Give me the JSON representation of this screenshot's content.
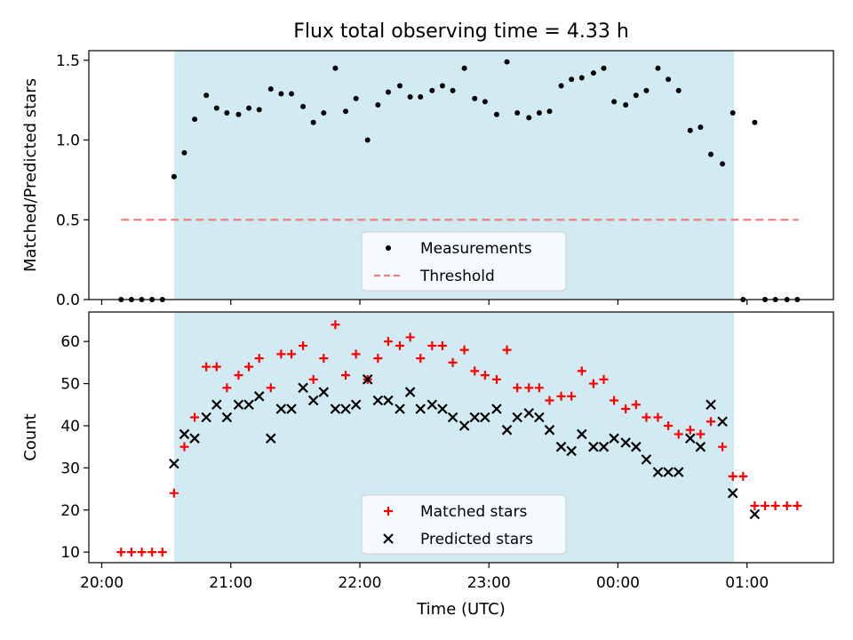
{
  "chart_data": {
    "title": "Flux total observing time = 4.33 h",
    "xlabel": "Time (UTC)",
    "x_tick_labels": [
      "20:00",
      "21:00",
      "22:00",
      "23:00",
      "00:00",
      "01:00"
    ],
    "x_ticks_hours": [
      0,
      1,
      2,
      3,
      4,
      5
    ],
    "xlim_hours": [
      -0.1,
      5.67
    ],
    "shaded_span_hours": [
      0.56,
      4.9
    ],
    "colors": {
      "shade": "#add8e6",
      "measurements": "#000000",
      "threshold": "#f08080",
      "matched": "#ff0000",
      "predicted": "#000000"
    },
    "panels": [
      {
        "type": "scatter",
        "ylabel": "Matched/Predicted stars",
        "ylim": [
          0,
          1.56
        ],
        "y_ticks": [
          0.0,
          0.5,
          1.0,
          1.5
        ],
        "y_tick_labels": [
          "0.0",
          "0.5",
          "1.0",
          "1.5"
        ],
        "legend": {
          "position": "lower-center",
          "entries": [
            {
              "label": "Measurements",
              "marker": "dot"
            },
            {
              "label": "Threshold",
              "marker": "dashed-line"
            }
          ]
        },
        "threshold": {
          "y": 0.5,
          "x_range_hours": [
            0.15,
            5.4
          ]
        },
        "series": [
          {
            "name": "Measurements",
            "marker": "dot",
            "x_hours": [
              0.15,
              0.23,
              0.31,
              0.39,
              0.47,
              0.56,
              0.64,
              0.72,
              0.81,
              0.89,
              0.97,
              1.06,
              1.14,
              1.22,
              1.31,
              1.39,
              1.47,
              1.56,
              1.64,
              1.72,
              1.81,
              1.89,
              1.97,
              2.06,
              2.14,
              2.22,
              2.31,
              2.39,
              2.47,
              2.56,
              2.64,
              2.72,
              2.81,
              2.89,
              2.97,
              3.06,
              3.14,
              3.22,
              3.31,
              3.39,
              3.47,
              3.56,
              3.64,
              3.72,
              3.81,
              3.89,
              3.97,
              4.06,
              4.14,
              4.22,
              4.31,
              4.39,
              4.47,
              4.56,
              4.64,
              4.72,
              4.81,
              4.89,
              4.97,
              5.06,
              5.14,
              5.22,
              5.31,
              5.39
            ],
            "values": [
              0,
              0,
              0,
              0,
              0,
              0.77,
              0.92,
              1.13,
              1.28,
              1.2,
              1.17,
              1.16,
              1.2,
              1.19,
              1.32,
              1.29,
              1.29,
              1.21,
              1.11,
              1.17,
              1.45,
              1.18,
              1.26,
              1.0,
              1.22,
              1.3,
              1.34,
              1.27,
              1.27,
              1.31,
              1.34,
              1.31,
              1.45,
              1.26,
              1.24,
              1.16,
              1.49,
              1.17,
              1.14,
              1.17,
              1.18,
              1.34,
              1.38,
              1.39,
              1.42,
              1.45,
              1.24,
              1.22,
              1.28,
              1.31,
              1.45,
              1.38,
              1.31,
              1.06,
              1.08,
              0.91,
              0.85,
              1.17,
              0,
              1.11,
              0,
              0,
              0,
              0
            ]
          }
        ]
      },
      {
        "type": "scatter",
        "ylabel": "Count",
        "ylim": [
          7.5,
          67
        ],
        "y_ticks": [
          10,
          20,
          30,
          40,
          50,
          60
        ],
        "y_tick_labels": [
          "10",
          "20",
          "30",
          "40",
          "50",
          "60"
        ],
        "legend": {
          "position": "lower-center",
          "entries": [
            {
              "label": "Matched stars",
              "marker": "plus"
            },
            {
              "label": "Predicted stars",
              "marker": "cross"
            }
          ]
        },
        "series": [
          {
            "name": "Matched stars",
            "marker": "plus",
            "x_hours": [
              0.15,
              0.23,
              0.31,
              0.39,
              0.47,
              0.56,
              0.64,
              0.72,
              0.81,
              0.89,
              0.97,
              1.06,
              1.14,
              1.22,
              1.31,
              1.39,
              1.47,
              1.56,
              1.64,
              1.72,
              1.81,
              1.89,
              1.97,
              2.06,
              2.14,
              2.22,
              2.31,
              2.39,
              2.47,
              2.56,
              2.64,
              2.72,
              2.81,
              2.89,
              2.97,
              3.06,
              3.14,
              3.22,
              3.31,
              3.39,
              3.47,
              3.56,
              3.64,
              3.72,
              3.81,
              3.89,
              3.97,
              4.06,
              4.14,
              4.22,
              4.31,
              4.39,
              4.47,
              4.56,
              4.64,
              4.72,
              4.81,
              4.89,
              4.97,
              5.06,
              5.14,
              5.22,
              5.31,
              5.39
            ],
            "values": [
              10,
              10,
              10,
              10,
              10,
              24,
              35,
              42,
              54,
              54,
              49,
              52,
              54,
              56,
              49,
              57,
              57,
              59,
              51,
              56,
              64,
              52,
              57,
              51,
              56,
              60,
              59,
              61,
              56,
              59,
              59,
              55,
              58,
              53,
              52,
              51,
              58,
              49,
              49,
              49,
              46,
              47,
              47,
              53,
              50,
              51,
              46,
              44,
              45,
              42,
              42,
              40,
              38,
              39,
              38,
              41,
              35,
              28,
              28,
              21,
              21,
              21,
              21,
              21
            ]
          },
          {
            "name": "Predicted stars",
            "marker": "cross",
            "x_hours": [
              0.56,
              0.64,
              0.72,
              0.81,
              0.89,
              0.97,
              1.06,
              1.14,
              1.22,
              1.31,
              1.39,
              1.47,
              1.56,
              1.64,
              1.72,
              1.81,
              1.89,
              1.97,
              2.06,
              2.14,
              2.22,
              2.31,
              2.39,
              2.47,
              2.56,
              2.64,
              2.72,
              2.81,
              2.89,
              2.97,
              3.06,
              3.14,
              3.22,
              3.31,
              3.39,
              3.47,
              3.56,
              3.64,
              3.72,
              3.81,
              3.89,
              3.97,
              4.06,
              4.14,
              4.22,
              4.31,
              4.39,
              4.47,
              4.56,
              4.64,
              4.72,
              4.81,
              4.89,
              5.06
            ],
            "values": [
              31,
              38,
              37,
              42,
              45,
              42,
              45,
              45,
              47,
              37,
              44,
              44,
              49,
              46,
              48,
              44,
              44,
              45,
              51,
              46,
              46,
              44,
              48,
              44,
              45,
              44,
              42,
              40,
              42,
              42,
              44,
              39,
              42,
              43,
              42,
              39,
              35,
              34,
              38,
              35,
              35,
              37,
              36,
              35,
              32,
              29,
              29,
              29,
              37,
              35,
              45,
              41,
              24,
              19
            ]
          }
        ]
      }
    ]
  }
}
